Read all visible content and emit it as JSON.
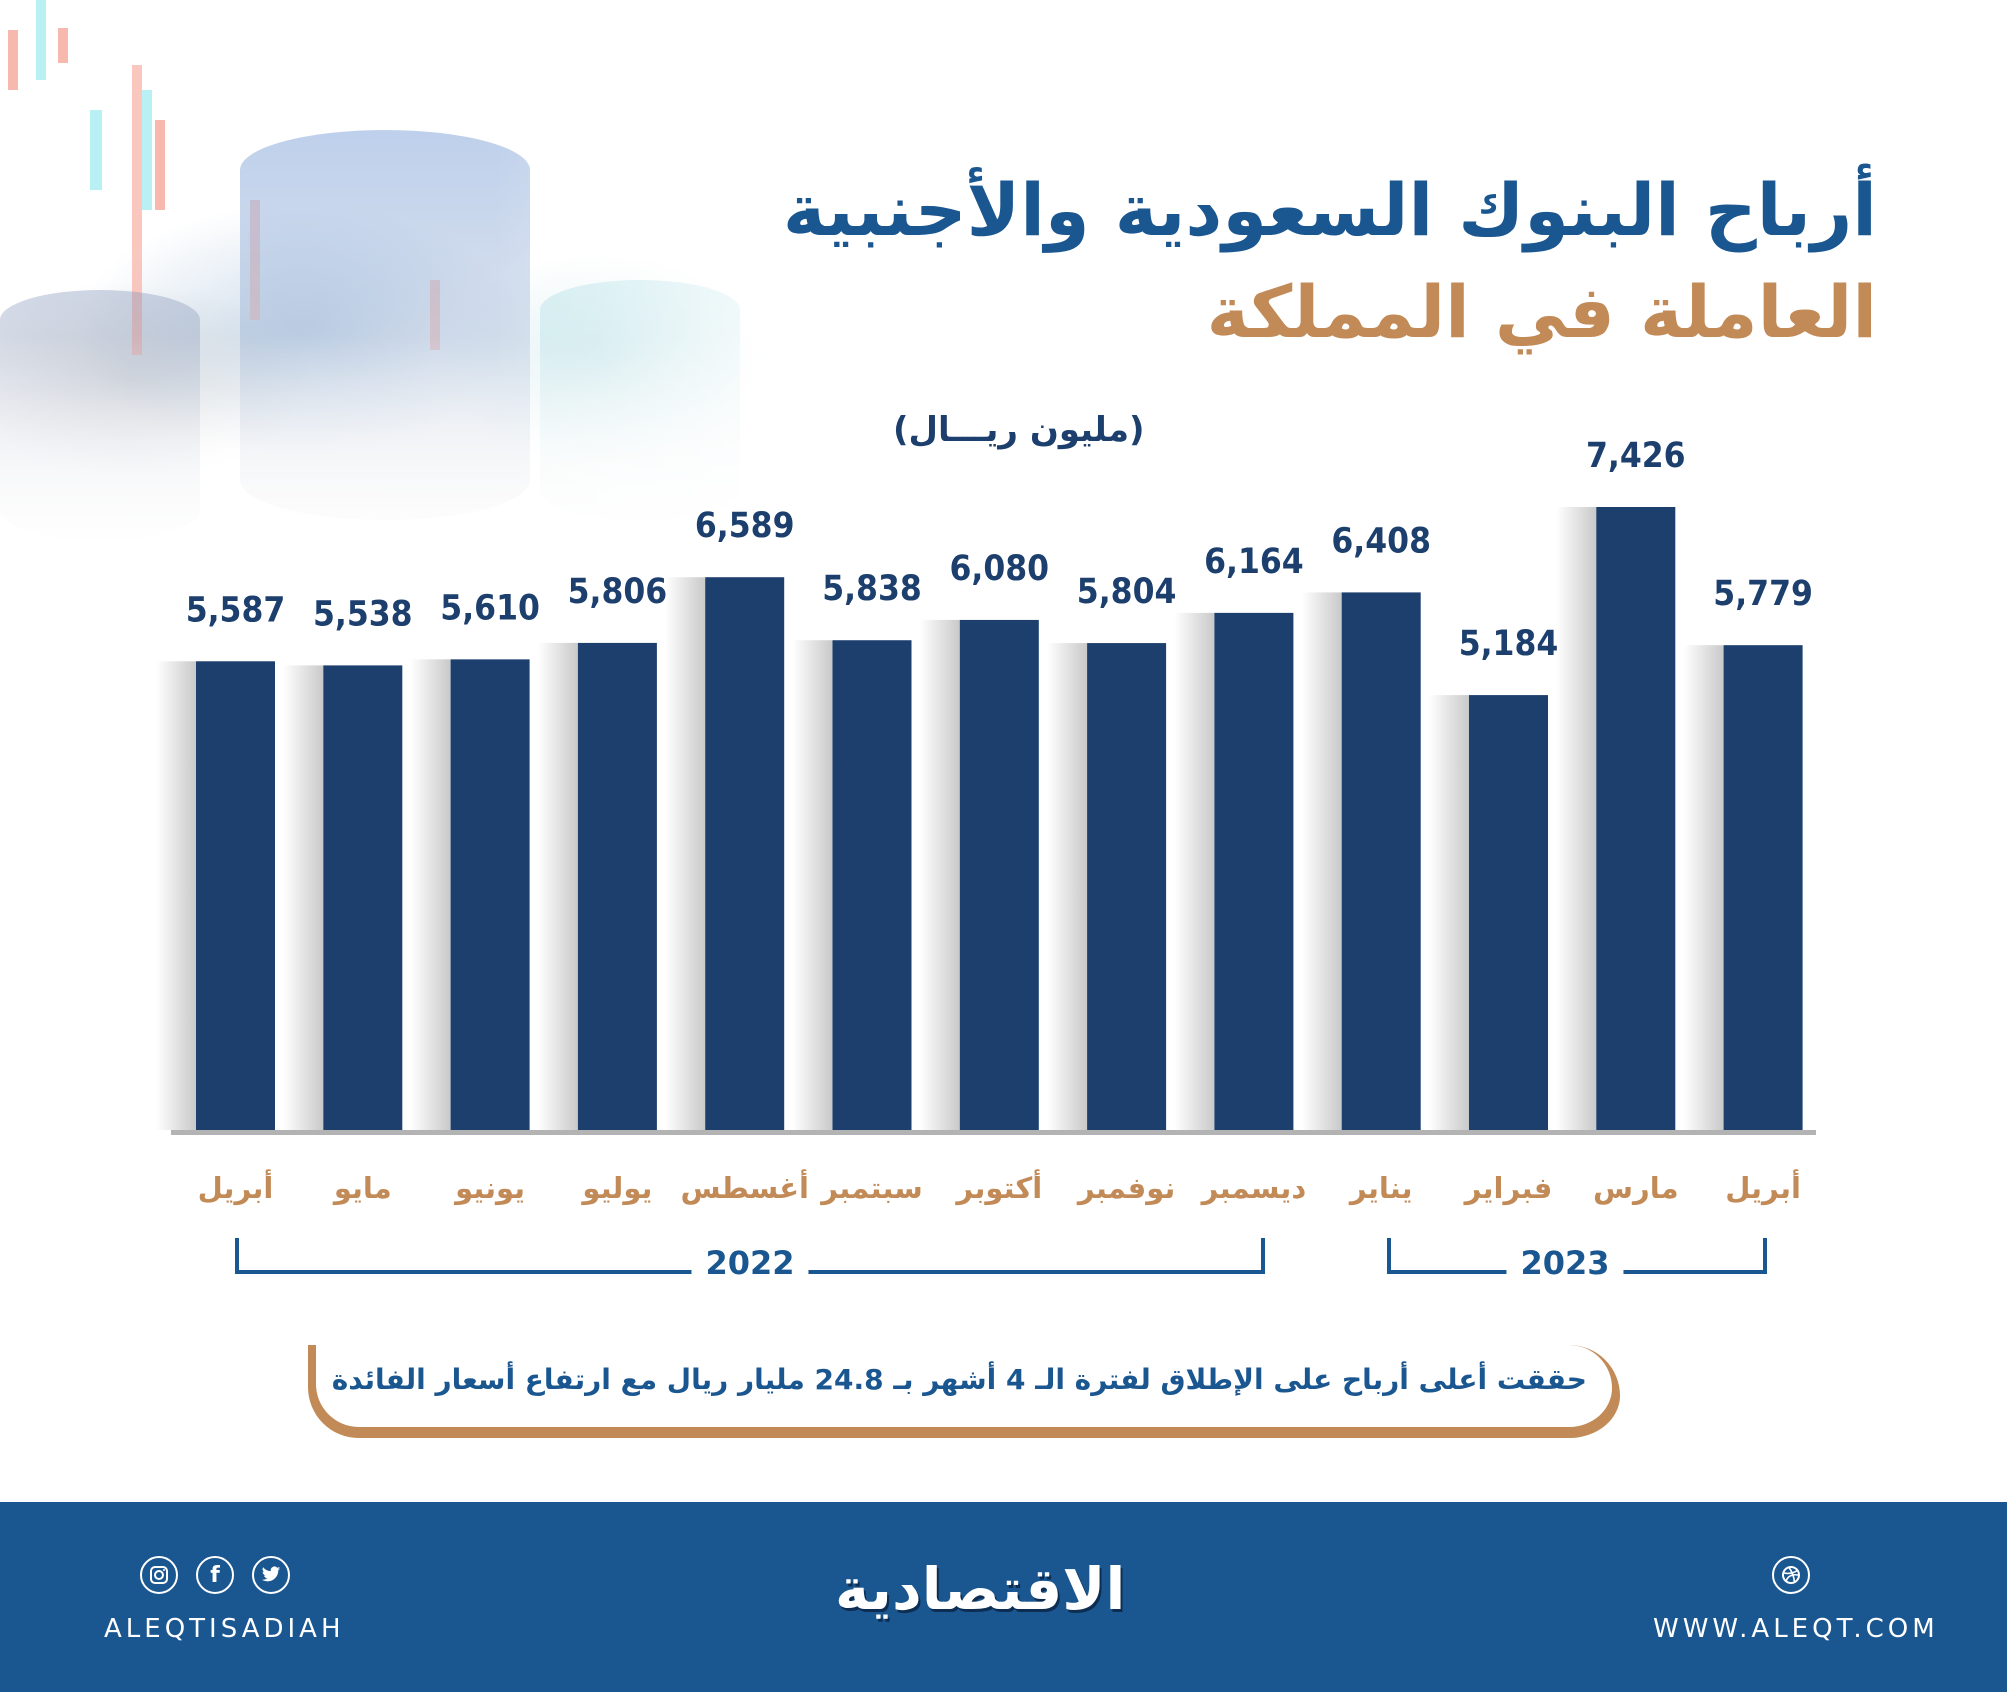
{
  "header": {
    "title_line1": "أرباح البنوك السعودية والأجنبية",
    "title_line2": "العاملة في المملكة",
    "unit_label": "(مليون ريـــال)"
  },
  "colors": {
    "bar": "#1c3f6e",
    "title_blue": "#1a5690",
    "accent_tan": "#c28a57",
    "footer_bg": "#1a5690"
  },
  "chart_data": {
    "type": "bar",
    "title": "أرباح البنوك السعودية والأجنبية العاملة في المملكة",
    "ylabel": "(مليون ريـــال)",
    "xlabel": "",
    "ylim": [
      0,
      7426
    ],
    "grid": false,
    "categories": [
      "أبريل",
      "مايو",
      "يونيو",
      "يوليو",
      "أغسطس",
      "سبتمبر",
      "أكتوبر",
      "نوفمبر",
      "ديسمبر",
      "يناير",
      "فبراير",
      "مارس",
      "أبريل"
    ],
    "values": [
      5587,
      5538,
      5610,
      5806,
      6589,
      5838,
      6080,
      5804,
      6164,
      6408,
      5184,
      7426,
      5779
    ],
    "value_labels": [
      "5,587",
      "5,538",
      "5,610",
      "5,806",
      "6,589",
      "5,838",
      "6,080",
      "5,804",
      "6,164",
      "6,408",
      "5,184",
      "7,426",
      "5,779"
    ],
    "groups": [
      {
        "label": "2022",
        "from_index": 0,
        "to_index": 8
      },
      {
        "label": "2023",
        "from_index": 9,
        "to_index": 12
      }
    ]
  },
  "note": {
    "text": "حققت أعلى أرباح على الإطلاق لفترة الـ 4 أشهر بـ 24.8 مليار ريال مع ارتفاع أسعار الفائدة"
  },
  "footer": {
    "logo_text": "الاقتصادية",
    "handle": "ALEQTISADIAH",
    "website": "WWW.ALEQT.COM",
    "social_icons": [
      "instagram-icon",
      "facebook-icon",
      "twitter-icon"
    ],
    "web_icon": "dribbble-icon"
  }
}
